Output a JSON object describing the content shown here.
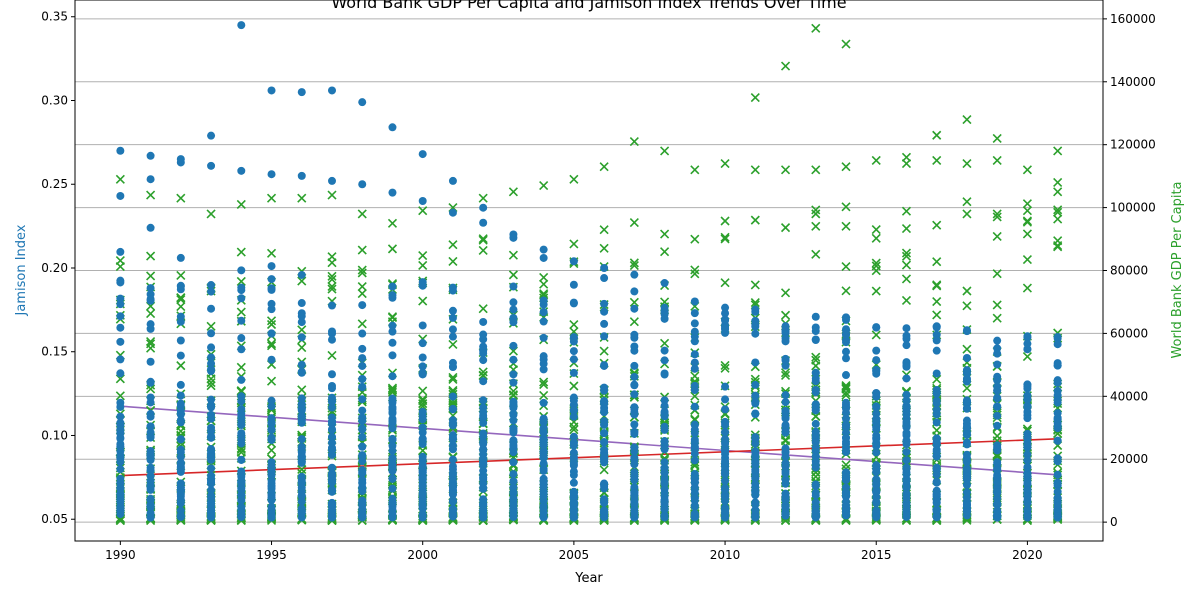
{
  "chart_data": {
    "type": "scatter",
    "title": "World Bank GDP Per Capita and Jamison Index Trends Over Time",
    "xlabel": "Year",
    "ylabel_left": "Jamison Index",
    "ylabel_right": "World Bank GDP Per Capita",
    "xlim": [
      1988.5,
      2022.5
    ],
    "ylim_left": [
      0.037,
      0.36
    ],
    "ylim_right": [
      -6000,
      166000
    ],
    "x_ticks": [
      1990,
      1995,
      2000,
      2005,
      2010,
      2015,
      2020
    ],
    "y_left_ticks": [
      0.05,
      0.1,
      0.15,
      0.2,
      0.25,
      0.3,
      0.35
    ],
    "y_left_tick_labels": [
      "0.05",
      "0.10",
      "0.15",
      "0.20",
      "0.25",
      "0.30",
      "0.35"
    ],
    "y_right_ticks": [
      0,
      20000,
      40000,
      60000,
      80000,
      100000,
      120000,
      140000,
      160000
    ],
    "y_right_tick_labels": [
      "0",
      "20000",
      "40000",
      "60000",
      "80000",
      "100000",
      "120000",
      "140000",
      "160000"
    ],
    "grid": "horizontal (right axis)",
    "colors": {
      "jamison": "#1f77b4",
      "gdp": "#2ca02c",
      "jamison_trend": "#9467bd",
      "gdp_trend": "#d62728",
      "axis_left_label": "#1f77b4",
      "axis_right_label": "#2ca02c",
      "grid": "#b0b0b0"
    },
    "jamison_trend": [
      [
        1990,
        0.1175
      ],
      [
        2021,
        0.0765
      ]
    ],
    "gdp_trend": [
      [
        1990,
        14800
      ],
      [
        2021,
        26500
      ]
    ],
    "jamison_outliers": [
      [
        1990,
        0.27
      ],
      [
        1990,
        0.243
      ],
      [
        1991,
        0.267
      ],
      [
        1991,
        0.253
      ],
      [
        1991,
        0.224
      ],
      [
        1992,
        0.265
      ],
      [
        1992,
        0.263
      ],
      [
        1993,
        0.279
      ],
      [
        1993,
        0.261
      ],
      [
        1994,
        0.345
      ],
      [
        1994,
        0.258
      ],
      [
        1995,
        0.306
      ],
      [
        1995,
        0.256
      ],
      [
        1996,
        0.305
      ],
      [
        1996,
        0.255
      ],
      [
        1997,
        0.306
      ],
      [
        1997,
        0.252
      ],
      [
        1998,
        0.299
      ],
      [
        1998,
        0.25
      ],
      [
        1999,
        0.284
      ],
      [
        1999,
        0.245
      ],
      [
        2000,
        0.268
      ],
      [
        2000,
        0.24
      ],
      [
        2001,
        0.252
      ],
      [
        2001,
        0.233
      ],
      [
        2002,
        0.236
      ],
      [
        2002,
        0.227
      ],
      [
        2003,
        0.22
      ],
      [
        2003,
        0.218
      ],
      [
        2004,
        0.211
      ],
      [
        2004,
        0.206
      ],
      [
        2005,
        0.204
      ],
      [
        2005,
        0.19
      ],
      [
        2006,
        0.2
      ],
      [
        2006,
        0.194
      ],
      [
        2007,
        0.196
      ],
      [
        2007,
        0.186
      ],
      [
        2008,
        0.191
      ],
      [
        2009,
        0.18
      ],
      [
        2010,
        0.173
      ],
      [
        2011,
        0.165
      ],
      [
        2012,
        0.158
      ],
      [
        2013,
        0.157
      ],
      [
        2014,
        0.15
      ],
      [
        2015,
        0.145
      ],
      [
        2016,
        0.141
      ],
      [
        2017,
        0.137
      ],
      [
        2018,
        0.134
      ],
      [
        2019,
        0.133
      ],
      [
        2020,
        0.128
      ],
      [
        2021,
        0.124
      ]
    ],
    "gdp_outliers": [
      [
        1990,
        109000
      ],
      [
        1991,
        104000
      ],
      [
        1992,
        103000
      ],
      [
        1993,
        98000
      ],
      [
        1994,
        101000
      ],
      [
        1995,
        103000
      ],
      [
        1996,
        103000
      ],
      [
        1997,
        104000
      ],
      [
        1998,
        98000
      ],
      [
        1999,
        95000
      ],
      [
        2000,
        99000
      ],
      [
        2001,
        100000
      ],
      [
        2002,
        103000
      ],
      [
        2003,
        105000
      ],
      [
        2004,
        107000
      ],
      [
        2005,
        109000
      ],
      [
        2006,
        113000
      ],
      [
        2007,
        121000
      ],
      [
        2008,
        118000
      ],
      [
        2009,
        112000
      ],
      [
        2010,
        114000
      ],
      [
        2011,
        135000
      ],
      [
        2012,
        145000
      ],
      [
        2013,
        157000
      ],
      [
        2014,
        152000
      ],
      [
        2015,
        115000
      ],
      [
        2016,
        116000
      ],
      [
        2017,
        123000
      ],
      [
        2018,
        128000
      ],
      [
        2019,
        122000
      ],
      [
        2020,
        112000
      ],
      [
        2021,
        118000
      ],
      [
        2011,
        112000
      ],
      [
        2012,
        112000
      ],
      [
        2013,
        112000
      ],
      [
        2014,
        113000
      ],
      [
        2016,
        114000
      ],
      [
        2017,
        115000
      ],
      [
        2018,
        114000
      ],
      [
        2019,
        115000
      ],
      [
        2021,
        108000
      ],
      [
        2021,
        105000
      ],
      [
        2020,
        99000
      ],
      [
        2019,
        98000
      ],
      [
        2018,
        98000
      ]
    ],
    "dense_band": {
      "jamison_range": [
        0.051,
        0.12
      ],
      "gdp_range": [
        500,
        45000
      ],
      "years": "1990-2021"
    }
  }
}
